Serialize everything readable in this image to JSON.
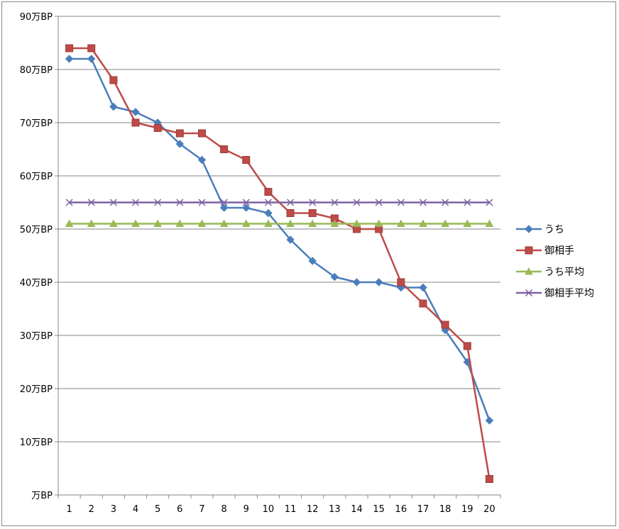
{
  "chart_data": {
    "type": "line",
    "title": "",
    "xlabel": "",
    "ylabel": "",
    "x": [
      1,
      2,
      3,
      4,
      5,
      6,
      7,
      8,
      9,
      10,
      11,
      12,
      13,
      14,
      15,
      16,
      17,
      18,
      19,
      20
    ],
    "x_tick_labels": [
      "1",
      "2",
      "3",
      "4",
      "5",
      "6",
      "7",
      "8",
      "9",
      "10",
      "11",
      "12",
      "13",
      "14",
      "15",
      "16",
      "17",
      "18",
      "19",
      "20"
    ],
    "ylim": [
      0,
      90
    ],
    "y_ticks": [
      0,
      10,
      20,
      30,
      40,
      50,
      60,
      70,
      80,
      90
    ],
    "y_tick_labels": [
      "万BP",
      "10万BP",
      "20万BP",
      "30万BP",
      "40万BP",
      "50万BP",
      "60万BP",
      "70万BP",
      "80万BP",
      "90万BP"
    ],
    "grid": true,
    "legend_position": "right",
    "series": [
      {
        "name": "うち",
        "color": "#4A7EBB",
        "marker": "diamond",
        "values": [
          82,
          82,
          73,
          72,
          70,
          66,
          63,
          54,
          54,
          53,
          48,
          44,
          41,
          40,
          40,
          39,
          39,
          31,
          25,
          14
        ]
      },
      {
        "name": "御相手",
        "color": "#BE4B48",
        "marker": "square",
        "values": [
          84,
          84,
          78,
          70,
          69,
          68,
          68,
          65,
          63,
          57,
          53,
          53,
          52,
          50,
          50,
          40,
          36,
          32,
          28,
          3
        ]
      },
      {
        "name": "うち平均",
        "color": "#98B954",
        "marker": "triangle",
        "values": [
          51,
          51,
          51,
          51,
          51,
          51,
          51,
          51,
          51,
          51,
          51,
          51,
          51,
          51,
          51,
          51,
          51,
          51,
          51,
          51
        ]
      },
      {
        "name": "御相手平均",
        "color": "#7D60A0",
        "marker": "x",
        "values": [
          55,
          55,
          55,
          55,
          55,
          55,
          55,
          55,
          55,
          55,
          55,
          55,
          55,
          55,
          55,
          55,
          55,
          55,
          55,
          55
        ]
      }
    ]
  }
}
